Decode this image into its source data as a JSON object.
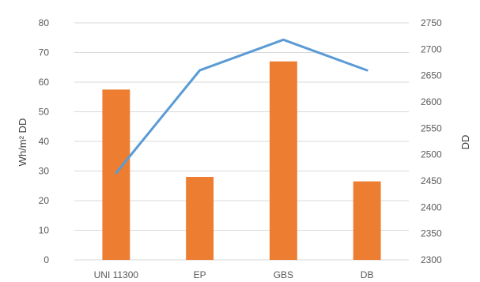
{
  "chart_data": {
    "type": "bar",
    "categories": [
      "UNI 11300",
      "EP",
      "GBS",
      "DB"
    ],
    "series": [
      {
        "type": "bar",
        "axis": "left",
        "color": "#ed7d31",
        "values": [
          57.5,
          28,
          67,
          26.5
        ]
      },
      {
        "type": "line",
        "axis": "right",
        "color": "#5b9bd5",
        "values": [
          2465,
          2660,
          2718,
          2660
        ]
      }
    ],
    "ylabel_left": "Wh/m² DD",
    "ylabel_right": "DD",
    "ylim_left": [
      0,
      80
    ],
    "yticks_left": [
      0,
      10,
      20,
      30,
      40,
      50,
      60,
      70,
      80
    ],
    "ylim_right": [
      2300,
      2750
    ],
    "yticks_right": [
      2300,
      2350,
      2400,
      2450,
      2500,
      2550,
      2600,
      2650,
      2700,
      2750
    ],
    "grid": true
  }
}
